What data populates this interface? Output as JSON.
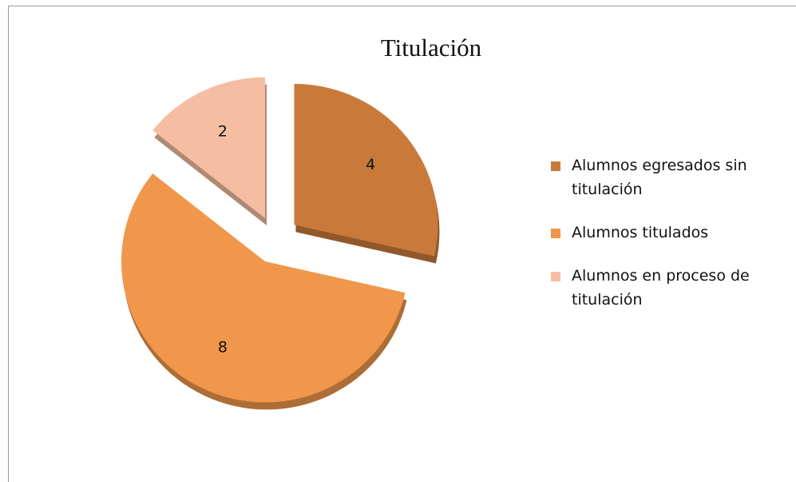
{
  "chart_data": {
    "type": "pie",
    "title": "Titulación",
    "categories": [
      "Alumnos egresados sin titulación",
      "Alumnos titulados",
      "Alumnos en proceso de titulación"
    ],
    "values": [
      4,
      8,
      2
    ],
    "colors": [
      "#c97a3b",
      "#f0974b",
      "#f5bea3"
    ],
    "legend": "right"
  }
}
